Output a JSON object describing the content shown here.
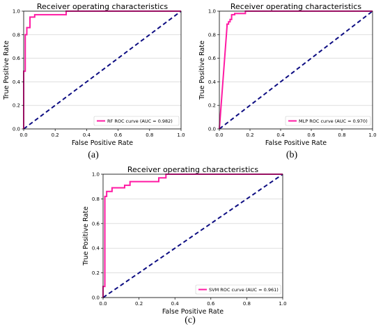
{
  "captions": [
    "(a)",
    "(b)",
    "(c)"
  ],
  "colors": {
    "roc": "#ff1aa3",
    "diag": "#0d0d82",
    "grid": "#cccccc"
  },
  "chart_data": [
    {
      "type": "line",
      "title": "Receiver operating characteristics",
      "xlabel": "False Positive Rate",
      "ylabel": "True Positive Rate",
      "xlim": [
        0.0,
        1.0
      ],
      "ylim": [
        0.0,
        1.0
      ],
      "xticks": [
        "0.0",
        "0.2",
        "0.4",
        "0.6",
        "0.8",
        "1.0"
      ],
      "yticks": [
        "0.0",
        "0.2",
        "0.4",
        "0.6",
        "0.8",
        "1.0"
      ],
      "grid": "horizontal",
      "legend_position": "lower-right",
      "series": [
        {
          "name": "RF ROC curve (AUC = 0.982)",
          "x": [
            0,
            0,
            0.01,
            0.01,
            0.02,
            0.02,
            0.04,
            0.04,
            0.07,
            0.07,
            0.27,
            0.27,
            1.0
          ],
          "y": [
            0,
            0.49,
            0.49,
            0.8,
            0.8,
            0.86,
            0.86,
            0.95,
            0.95,
            0.97,
            0.97,
            1.0,
            1.0
          ]
        }
      ],
      "diagonal": {
        "x": [
          0,
          1
        ],
        "y": [
          0,
          1
        ]
      }
    },
    {
      "type": "line",
      "title": "Receiver operating characteristics",
      "xlabel": "False Positive Rate",
      "ylabel": "True Positive Rate",
      "xlim": [
        0.0,
        1.0
      ],
      "ylim": [
        0.0,
        1.0
      ],
      "xticks": [
        "0.0",
        "0.2",
        "0.4",
        "0.6",
        "0.8",
        "1.0"
      ],
      "yticks": [
        "0.0",
        "0.2",
        "0.4",
        "0.6",
        "0.8",
        "1.0"
      ],
      "grid": "horizontal",
      "legend_position": "lower-right",
      "series": [
        {
          "name": "MLP ROC curve (AUC = 0.970)",
          "x": [
            0,
            0.05,
            0.05,
            0.06,
            0.06,
            0.07,
            0.07,
            0.08,
            0.08,
            0.1,
            0.1,
            0.17,
            0.17,
            1.0
          ],
          "y": [
            0,
            0.87,
            0.89,
            0.89,
            0.91,
            0.91,
            0.93,
            0.93,
            0.97,
            0.97,
            0.98,
            0.98,
            1.0,
            1.0
          ]
        }
      ],
      "diagonal": {
        "x": [
          0,
          1
        ],
        "y": [
          0,
          1
        ]
      }
    },
    {
      "type": "line",
      "title": "Receiver operating characteristics",
      "xlabel": "False Positive Rate",
      "ylabel": "True Positive Rate",
      "xlim": [
        0.0,
        1.0
      ],
      "ylim": [
        0.0,
        1.0
      ],
      "xticks": [
        "0.0",
        "0.2",
        "0.4",
        "0.6",
        "0.8",
        "1.0"
      ],
      "yticks": [
        "0.0",
        "0.2",
        "0.4",
        "0.6",
        "0.8",
        "1.0"
      ],
      "grid": "horizontal",
      "legend_position": "lower-right",
      "series": [
        {
          "name": "SVM ROC curve (AUC = 0.961)",
          "x": [
            0,
            0,
            0.01,
            0.01,
            0.02,
            0.02,
            0.05,
            0.05,
            0.12,
            0.12,
            0.15,
            0.15,
            0.31,
            0.31,
            0.35,
            0.35,
            1.0
          ],
          "y": [
            0,
            0.09,
            0.09,
            0.82,
            0.82,
            0.86,
            0.86,
            0.89,
            0.89,
            0.91,
            0.91,
            0.94,
            0.94,
            0.97,
            0.97,
            1.0,
            1.0
          ]
        }
      ],
      "diagonal": {
        "x": [
          0,
          1
        ],
        "y": [
          0,
          1
        ]
      }
    }
  ]
}
